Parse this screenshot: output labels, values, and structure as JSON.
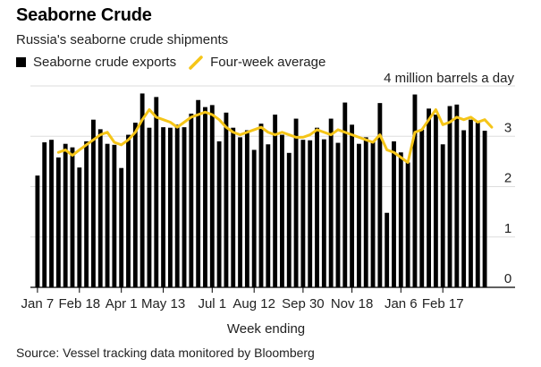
{
  "chart_data": {
    "type": "bar",
    "title": "Seaborne Crude",
    "subtitle": "Russia's seaborne crude shipments",
    "unit_label": "4 million barrels a day",
    "xlabel": "Week ending",
    "ylabel": "",
    "ylim": [
      0,
      4
    ],
    "yticks": [
      0,
      1,
      2,
      3
    ],
    "xtick_labels": [
      "Jan 7",
      "Feb 18",
      "Apr 1",
      "May 13",
      "Jul 1",
      "Aug 12",
      "Sep 30",
      "Nov 18",
      "Jan 6",
      "Feb 17"
    ],
    "xtick_indices": [
      0,
      6,
      12,
      18,
      25,
      31,
      38,
      45,
      52,
      58
    ],
    "legend": [
      "Seaborne crude exports",
      "Four-week average"
    ],
    "colors": {
      "bars": "#000000",
      "line": "#f5c518",
      "grid": "#dddddd",
      "axis": "#000000"
    },
    "series": [
      {
        "name": "Seaborne crude exports",
        "values": [
          2.22,
          2.88,
          2.93,
          2.58,
          2.85,
          2.78,
          2.38,
          2.9,
          3.33,
          3.14,
          2.85,
          2.83,
          2.37,
          3.03,
          3.27,
          3.85,
          3.17,
          3.78,
          3.18,
          3.17,
          3.23,
          3.18,
          3.45,
          3.72,
          3.58,
          3.62,
          2.9,
          3.47,
          3.17,
          2.98,
          3.12,
          2.73,
          3.25,
          2.84,
          3.43,
          3.03,
          2.67,
          3.35,
          2.93,
          2.92,
          3.17,
          2.94,
          3.35,
          2.87,
          3.67,
          3.23,
          2.85,
          2.98,
          2.9,
          3.66,
          1.48,
          2.9,
          2.68,
          2.48,
          3.83,
          3.13,
          3.55,
          3.43,
          2.84,
          3.6,
          3.63,
          3.12,
          3.33,
          3.27,
          3.11
        ]
      },
      {
        "name": "Four-week average",
        "start_index": 3,
        "values": [
          2.68,
          2.73,
          2.62,
          2.73,
          2.83,
          2.93,
          3.03,
          3.08,
          2.88,
          2.83,
          2.93,
          3.08,
          3.33,
          3.53,
          3.38,
          3.33,
          3.28,
          3.18,
          3.28,
          3.38,
          3.43,
          3.48,
          3.43,
          3.33,
          3.18,
          3.08,
          3.03,
          3.08,
          3.13,
          3.18,
          3.08,
          3.03,
          3.08,
          3.03,
          2.98,
          2.98,
          3.03,
          3.13,
          3.08,
          3.03,
          3.13,
          3.08,
          3.03,
          2.98,
          2.93,
          2.88,
          3.03,
          2.73,
          2.68,
          2.58,
          2.48,
          3.08,
          3.13,
          3.33,
          3.53,
          3.23,
          3.28,
          3.38,
          3.33,
          3.38,
          3.28,
          3.33,
          3.18
        ]
      }
    ]
  }
}
